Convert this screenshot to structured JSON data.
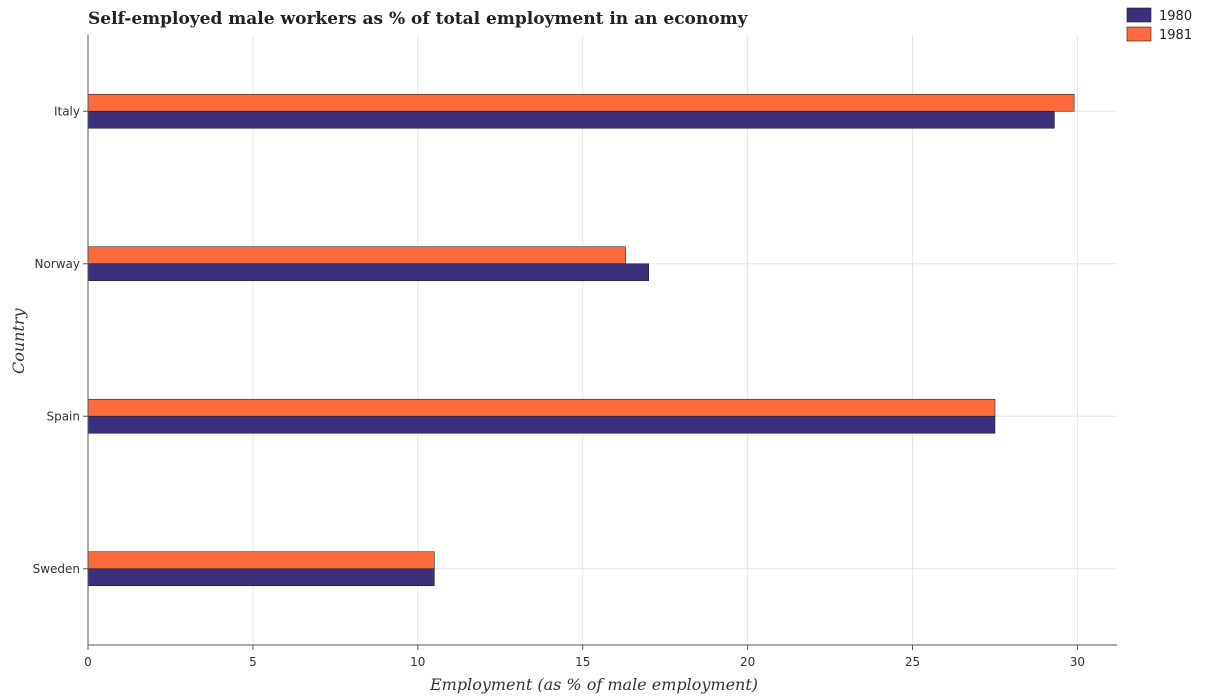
{
  "chart_data": {
    "type": "bar",
    "orientation": "horizontal",
    "title": "Self-employed male workers as % of total employment in an economy",
    "xlabel": "Employment (as % of male employment)",
    "ylabel": "Country",
    "categories": [
      "Italy",
      "Norway",
      "Spain",
      "Sweden"
    ],
    "series": [
      {
        "name": "1980",
        "values": [
          29.3,
          17.0,
          27.5,
          10.5
        ],
        "color": "#3a2f7a"
      },
      {
        "name": "1981",
        "values": [
          29.9,
          16.3,
          27.5,
          10.5
        ],
        "color": "#ff6a3d"
      }
    ],
    "xlim": [
      0,
      31.2
    ],
    "xticks": [
      0,
      5,
      10,
      15,
      20,
      25,
      30
    ],
    "xtick_labels": [
      "0",
      "5",
      "10",
      "15",
      "20",
      "25",
      "30"
    ],
    "grid": true,
    "legend_position": "top-right"
  }
}
